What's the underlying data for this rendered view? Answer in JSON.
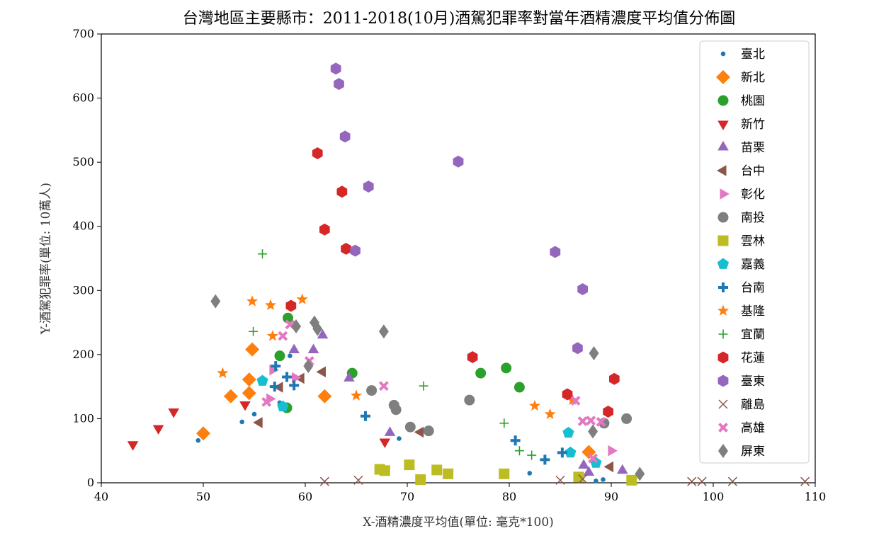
{
  "chart_data": {
    "type": "scatter",
    "title": "台灣地區主要縣市：2011-2018(10月)酒駕犯罪率對當年酒精濃度平均值分佈圖",
    "xlabel": "X-酒精濃度平均值(單位: 毫克*100)",
    "ylabel": "Y-酒駕犯罪率(單位: 10萬人)",
    "xlim": [
      40,
      110
    ],
    "ylim": [
      0,
      700
    ],
    "xticks": [
      40,
      50,
      60,
      70,
      80,
      90,
      100,
      110
    ],
    "yticks": [
      0,
      100,
      200,
      300,
      400,
      500,
      600,
      700
    ],
    "grid": false,
    "legend_position": "top-right",
    "series": [
      {
        "name": "臺北",
        "marker": "point",
        "color": "#1f77b4",
        "points": [
          [
            49.5,
            66
          ],
          [
            53.8,
            95
          ],
          [
            55,
            107
          ],
          [
            57.5,
            125
          ],
          [
            58.5,
            198
          ],
          [
            69.2,
            69
          ],
          [
            82,
            15
          ],
          [
            88.5,
            3
          ],
          [
            89.2,
            5
          ]
        ]
      },
      {
        "name": "新北",
        "marker": "diamond",
        "color": "#ff7f0e",
        "points": [
          [
            50,
            77
          ],
          [
            52.7,
            135
          ],
          [
            54.5,
            161
          ],
          [
            54.5,
            140
          ],
          [
            54.8,
            208
          ],
          [
            61.9,
            135
          ],
          [
            87.8,
            48
          ]
        ]
      },
      {
        "name": "桃園",
        "marker": "circle",
        "color": "#2ca02c",
        "points": [
          [
            57.5,
            198
          ],
          [
            58.2,
            117
          ],
          [
            58.3,
            257
          ],
          [
            64.6,
            171
          ],
          [
            77.2,
            171
          ],
          [
            79.7,
            179
          ],
          [
            81,
            149
          ]
        ]
      },
      {
        "name": "新竹",
        "marker": "triangle_down",
        "color": "#d62728",
        "points": [
          [
            43.1,
            60
          ],
          [
            45.6,
            85
          ],
          [
            47.1,
            111
          ],
          [
            54.1,
            122
          ],
          [
            67.8,
            64
          ]
        ]
      },
      {
        "name": "苗栗",
        "marker": "triangle_up",
        "color": "#9467bd",
        "points": [
          [
            58.9,
            207
          ],
          [
            60.8,
            207
          ],
          [
            61.7,
            230
          ],
          [
            64.3,
            163
          ],
          [
            68.3,
            78
          ],
          [
            87.3,
            27
          ],
          [
            87.8,
            16
          ],
          [
            91.1,
            19
          ]
        ]
      },
      {
        "name": "台中",
        "marker": "triangle_left",
        "color": "#8c564b",
        "points": [
          [
            55.5,
            94
          ],
          [
            57.5,
            149
          ],
          [
            59.6,
            163
          ],
          [
            61.7,
            173
          ],
          [
            71.3,
            79
          ],
          [
            89.9,
            25
          ]
        ]
      },
      {
        "name": "彰化",
        "marker": "triangle_right",
        "color": "#e377c2",
        "points": [
          [
            56.5,
            131
          ],
          [
            56.8,
            176
          ],
          [
            59,
            164
          ],
          [
            90,
            50
          ]
        ]
      },
      {
        "name": "南投",
        "marker": "circle",
        "color": "#7f7f7f",
        "points": [
          [
            66.5,
            144
          ],
          [
            68.7,
            121
          ],
          [
            68.9,
            114
          ],
          [
            70.3,
            87
          ],
          [
            72.1,
            81
          ],
          [
            76.1,
            129
          ],
          [
            89.3,
            93
          ],
          [
            91.5,
            100
          ]
        ]
      },
      {
        "name": "雲林",
        "marker": "square",
        "color": "#bcbd22",
        "points": [
          [
            67.3,
            21
          ],
          [
            67.8,
            19
          ],
          [
            70.2,
            28
          ],
          [
            71.3,
            5
          ],
          [
            72.9,
            20
          ],
          [
            74,
            14
          ],
          [
            79.5,
            14
          ],
          [
            86.8,
            9
          ],
          [
            92,
            4
          ]
        ]
      },
      {
        "name": "嘉義",
        "marker": "pentagon",
        "color": "#17becf",
        "points": [
          [
            55.8,
            159
          ],
          [
            57.8,
            119
          ],
          [
            85.8,
            78
          ],
          [
            86,
            47
          ],
          [
            88.5,
            31
          ]
        ]
      },
      {
        "name": "台南",
        "marker": "plus_filled",
        "color": "#1f77b4",
        "points": [
          [
            57,
            150
          ],
          [
            57.1,
            182
          ],
          [
            58.2,
            165
          ],
          [
            58.9,
            152
          ],
          [
            65.9,
            104
          ],
          [
            80.6,
            66
          ],
          [
            83.5,
            36
          ],
          [
            85.2,
            47
          ]
        ]
      },
      {
        "name": "基隆",
        "marker": "star",
        "color": "#ff7f0e",
        "points": [
          [
            51.9,
            171
          ],
          [
            54.8,
            283
          ],
          [
            56.6,
            277
          ],
          [
            59.7,
            286
          ],
          [
            56.8,
            229
          ],
          [
            65,
            136
          ],
          [
            82.5,
            120
          ],
          [
            84,
            107
          ],
          [
            86.2,
            129
          ]
        ]
      },
      {
        "name": "宜蘭",
        "marker": "plus",
        "color": "#2ca02c",
        "points": [
          [
            55.8,
            357
          ],
          [
            54.9,
            236
          ],
          [
            71.6,
            151
          ],
          [
            79.5,
            93
          ],
          [
            81,
            50
          ],
          [
            82.2,
            43
          ]
        ]
      },
      {
        "name": "花蓮",
        "marker": "hexagon",
        "color": "#d62728",
        "points": [
          [
            58.6,
            276
          ],
          [
            61.2,
            514
          ],
          [
            61.9,
            395
          ],
          [
            63.6,
            454
          ],
          [
            64,
            365
          ],
          [
            76.4,
            196
          ],
          [
            85.7,
            138
          ],
          [
            89.7,
            111
          ],
          [
            90.3,
            162
          ]
        ]
      },
      {
        "name": "臺東",
        "marker": "hexagon",
        "color": "#9467bd",
        "points": [
          [
            63,
            646
          ],
          [
            63.3,
            622
          ],
          [
            63.9,
            540
          ],
          [
            64.9,
            362
          ],
          [
            66.2,
            462
          ],
          [
            75,
            501
          ],
          [
            84.5,
            360
          ],
          [
            86.7,
            210
          ],
          [
            87.2,
            302
          ]
        ]
      },
      {
        "name": "離島",
        "marker": "x",
        "color": "#8c564b",
        "points": [
          [
            61.9,
            2
          ],
          [
            65.2,
            4
          ],
          [
            85,
            4
          ],
          [
            87.2,
            6
          ],
          [
            97.9,
            2
          ],
          [
            98.9,
            2
          ],
          [
            101.9,
            2
          ],
          [
            109,
            2
          ]
        ]
      },
      {
        "name": "高雄",
        "marker": "x_filled",
        "color": "#e377c2",
        "points": [
          [
            56.2,
            126
          ],
          [
            57.8,
            229
          ],
          [
            58.5,
            247
          ],
          [
            60.4,
            190
          ],
          [
            67.7,
            151
          ],
          [
            86.5,
            128
          ],
          [
            88,
            97
          ],
          [
            89,
            95
          ],
          [
            87.2,
            96
          ],
          [
            88.2,
            38
          ]
        ]
      },
      {
        "name": "屏東",
        "marker": "diamond_thin",
        "color": "#7f7f7f",
        "points": [
          [
            51.2,
            283
          ],
          [
            59.1,
            244
          ],
          [
            60.9,
            250
          ],
          [
            61.2,
            240
          ],
          [
            60.3,
            182
          ],
          [
            67.7,
            236
          ],
          [
            88.2,
            80
          ],
          [
            88.3,
            202
          ],
          [
            92.8,
            14
          ]
        ]
      }
    ]
  }
}
